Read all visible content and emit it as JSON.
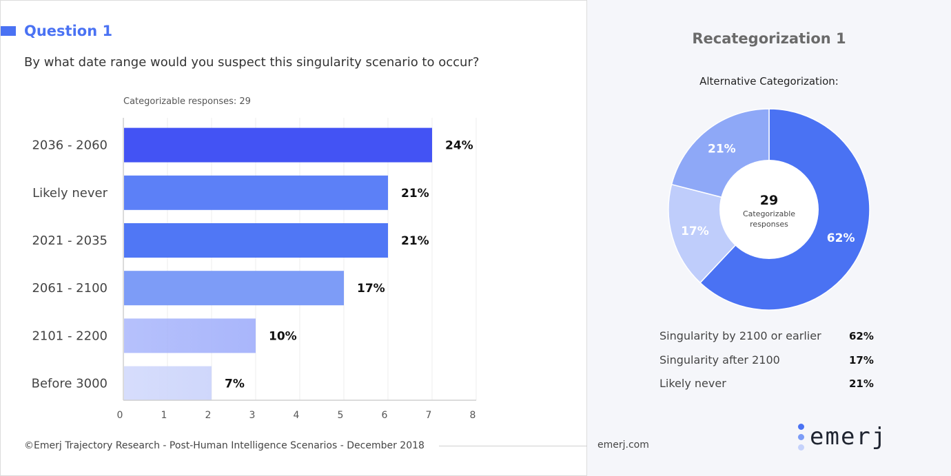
{
  "question": {
    "title": "Question 1",
    "text": "By what date range would you suspect this singularity scenario to occur?",
    "responses_label": "Categorizable responses: 29"
  },
  "chart_data": [
    {
      "type": "bar",
      "orientation": "horizontal",
      "title": "Question 1",
      "subtitle": "Categorizable responses: 29",
      "categories": [
        "2036 - 2060",
        "Likely never",
        "2021 - 2035",
        "2061 - 2100",
        "2101 - 2200",
        "Before 3000"
      ],
      "values": [
        7,
        6,
        6,
        5,
        3,
        2
      ],
      "data_labels": [
        "24%",
        "21%",
        "21%",
        "17%",
        "10%",
        "7%"
      ],
      "bar_colors": [
        "#4353f4",
        "#5c80f7",
        "#5077f5",
        "#7d9cf7",
        "#a9b6fb",
        "#cfd7fb"
      ],
      "xlim": [
        0,
        8
      ],
      "xticks": [
        0,
        1,
        2,
        3,
        4,
        5,
        6,
        7,
        8
      ],
      "grid": true
    },
    {
      "type": "pie",
      "donut": true,
      "title": "Alternative Categorization:",
      "center_value": "29",
      "center_label": "Categorizable responses",
      "slices": [
        {
          "label": "Singularity by 2100 or earlier",
          "value": 62,
          "display": "62%",
          "color": "#4a72f3"
        },
        {
          "label": "Singularity after 2100",
          "value": 17,
          "display": "17%",
          "color": "#bfcdfb"
        },
        {
          "label": "Likely never",
          "value": 21,
          "display": "21%",
          "color": "#8ea8f7"
        }
      ]
    }
  ],
  "recategorization": {
    "title": "Recategorization 1",
    "subtitle": "Alternative Categorization:",
    "legend": [
      {
        "label": "Singularity by 2100 or earlier",
        "value": "62%"
      },
      {
        "label": "Singularity after 2100",
        "value": "17%"
      },
      {
        "label": "Likely never",
        "value": "21%"
      }
    ]
  },
  "footer": {
    "copyright": "©Emerj Trajectory Research - Post-Human Intelligence Scenarios -  December 2018",
    "site": "emerj.com",
    "logo_text": "emerj",
    "logo_icon": "emerj-dots-logo-icon"
  },
  "colors": {
    "accent": "#4a72f3",
    "title_blue": "#4a72f3",
    "logo_dots": [
      "#4a72f3",
      "#7c9cf7",
      "#c5d2fb"
    ]
  }
}
